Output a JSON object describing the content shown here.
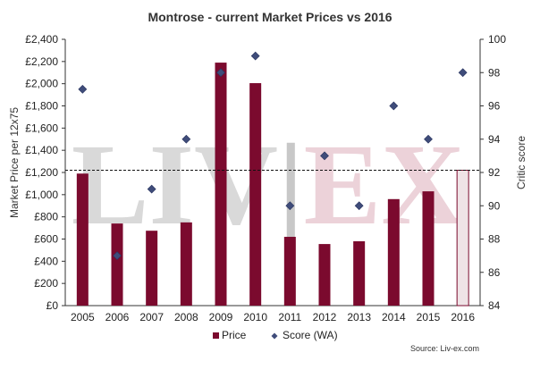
{
  "chart_data": {
    "type": "bar",
    "title": "Montrose - current Market Prices vs 2016",
    "ylabel": "Market Price per 12x75",
    "y2label": "Critic score",
    "categories": [
      "2005",
      "2006",
      "2007",
      "2008",
      "2009",
      "2010",
      "2011",
      "2012",
      "2013",
      "2014",
      "2015",
      "2016"
    ],
    "ylim": [
      0,
      2400
    ],
    "y_ticks": [
      "£0",
      "£200",
      "£400",
      "£600",
      "£800",
      "£1,000",
      "£1,200",
      "£1,400",
      "£1,600",
      "£1,800",
      "£2,000",
      "£2,200",
      "£2,400"
    ],
    "y2lim": [
      84,
      100
    ],
    "y2_ticks": [
      "84",
      "86",
      "88",
      "90",
      "92",
      "94",
      "96",
      "98",
      "100"
    ],
    "series": [
      {
        "name": "Price",
        "kind": "bar",
        "axis": "left",
        "color": "#7b0a2e",
        "values": [
          1190,
          740,
          675,
          750,
          2190,
          2005,
          620,
          555,
          580,
          960,
          1030,
          1220
        ]
      },
      {
        "name": "Score (WA)",
        "kind": "scatter",
        "axis": "right",
        "color": "#3f4c7a",
        "values": [
          97,
          87,
          91,
          94,
          98,
          99,
          90,
          93,
          90,
          96,
          94,
          98
        ]
      }
    ],
    "highlight_category": "2016",
    "highlight_color": "#efe3e6",
    "reference_line": {
      "value": 1220,
      "style": "dashed"
    },
    "legend_position": "bottom-center",
    "grid": false,
    "source": "Source: Liv-ex.com",
    "watermark": "LIV-EX"
  }
}
